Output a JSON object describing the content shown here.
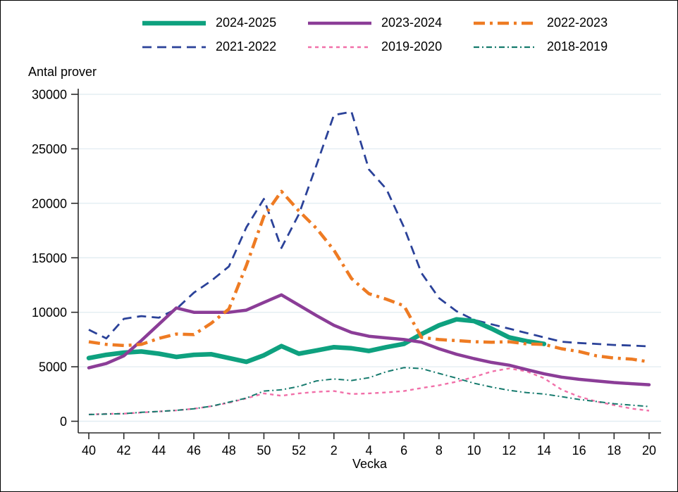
{
  "page": {
    "y_axis_title": "Antal prover",
    "x_axis_title": "Vecka"
  },
  "chart_data": {
    "type": "line",
    "title": "Antal prover",
    "xlabel": "Vecka",
    "ylabel": "Antal prover",
    "ylim": [
      0,
      30000
    ],
    "yticks": [
      0,
      5000,
      10000,
      15000,
      20000,
      25000,
      30000
    ],
    "grid": true,
    "legend_position": "top",
    "x_categories": [
      "40",
      "41",
      "42",
      "43",
      "44",
      "45",
      "46",
      "47",
      "48",
      "49",
      "50",
      "51",
      "52",
      "1",
      "2",
      "3",
      "4",
      "5",
      "6",
      "7",
      "8",
      "9",
      "10",
      "11",
      "12",
      "13",
      "14",
      "15",
      "16",
      "17",
      "18",
      "19",
      "20"
    ],
    "x_tick_labels": [
      "40",
      "42",
      "44",
      "46",
      "48",
      "50",
      "52",
      "2",
      "4",
      "6",
      "8",
      "10",
      "12",
      "14",
      "16",
      "18",
      "20"
    ],
    "axis_color": "#2b2b2b",
    "gridline_color": "#e3eef2",
    "draw_order": [
      3,
      4,
      5,
      0,
      1,
      2
    ],
    "series": [
      {
        "name": "2024-2025",
        "color": "#0ea17f",
        "line_style": "solid",
        "width": 6.5,
        "values": [
          5800,
          6100,
          6300,
          6400,
          6200,
          5900,
          6100,
          6150,
          5800,
          5450,
          6050,
          6900,
          6200,
          6500,
          6800,
          6700,
          6450,
          6800,
          7100,
          8000,
          8800,
          9350,
          9200,
          8500,
          7700,
          7350,
          7100,
          null,
          null,
          null,
          null,
          null,
          null
        ]
      },
      {
        "name": "2023-2024",
        "color": "#8b3d97",
        "line_style": "solid",
        "width": 4.5,
        "values": [
          4900,
          5300,
          6000,
          7400,
          8900,
          10400,
          10000,
          10000,
          10000,
          10200,
          10900,
          11600,
          10650,
          9700,
          8800,
          8150,
          7800,
          7650,
          7500,
          7250,
          6650,
          6150,
          5750,
          5400,
          5150,
          4750,
          4350,
          4050,
          3850,
          3700,
          3550,
          3450,
          3350
        ]
      },
      {
        "name": "2022-2023",
        "color": "#ee7b23",
        "line_style": "dash-dot",
        "width": 4.5,
        "values": [
          7290,
          7050,
          6950,
          7050,
          7600,
          8000,
          7950,
          9000,
          10300,
          14300,
          18800,
          21100,
          19300,
          17700,
          15700,
          13100,
          11700,
          11200,
          10600,
          7700,
          7500,
          7400,
          7300,
          7250,
          7300,
          7100,
          7050,
          6650,
          6400,
          6000,
          5800,
          5700,
          5450
        ]
      },
      {
        "name": "2021-2022",
        "color": "#2b4299",
        "line_style": "long-dash",
        "width": 2.8,
        "values": [
          8400,
          7600,
          9400,
          9650,
          9500,
          10300,
          11800,
          12900,
          14200,
          17800,
          20400,
          15900,
          19000,
          23500,
          28100,
          28400,
          23100,
          21300,
          17800,
          13600,
          11300,
          10100,
          9300,
          8900,
          8500,
          8100,
          7700,
          7300,
          7180,
          7100,
          7000,
          6950,
          6870
        ]
      },
      {
        "name": "2019-2020",
        "color": "#f170a9",
        "line_style": "short-dash",
        "width": 2.4,
        "values": [
          620,
          680,
          700,
          800,
          900,
          1000,
          1150,
          1380,
          1700,
          2100,
          2560,
          2340,
          2560,
          2700,
          2770,
          2500,
          2560,
          2650,
          2770,
          3050,
          3300,
          3630,
          4060,
          4560,
          4850,
          4580,
          3950,
          2900,
          2260,
          1810,
          1480,
          1160,
          970
        ]
      },
      {
        "name": "2018-2019",
        "color": "#157a6d",
        "line_style": "dash-dot-thin",
        "width": 2,
        "values": [
          620,
          660,
          700,
          820,
          900,
          1000,
          1150,
          1380,
          1750,
          2130,
          2770,
          2890,
          3200,
          3700,
          3880,
          3740,
          4000,
          4550,
          4920,
          4840,
          4390,
          3960,
          3490,
          3140,
          2840,
          2630,
          2500,
          2260,
          2000,
          1810,
          1610,
          1480,
          1350
        ]
      }
    ]
  }
}
